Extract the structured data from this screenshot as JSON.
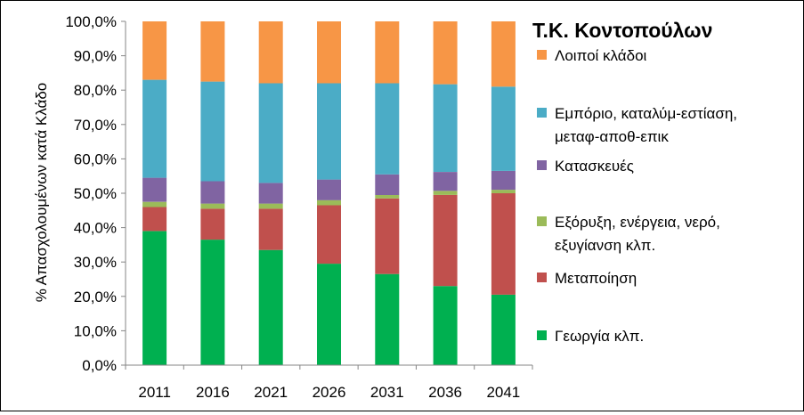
{
  "chart_data": {
    "type": "bar",
    "stacked": true,
    "title": "Τ.Κ. Κοντοπούλων",
    "xlabel": "",
    "ylabel": "% Απασχολουμένων κατά Κλάδο",
    "ylim": [
      0,
      100
    ],
    "ytick_labels": [
      "0,0%",
      "10,0%",
      "20,0%",
      "30,0%",
      "40,0%",
      "50,0%",
      "60,0%",
      "70,0%",
      "80,0%",
      "90,0%",
      "100,0%"
    ],
    "grid": false,
    "legend_position": "right",
    "categories": [
      "2011",
      "2016",
      "2021",
      "2026",
      "2031",
      "2036",
      "2041"
    ],
    "series": [
      {
        "name": "Γεωργία κλπ.",
        "color": "#00B050",
        "values": [
          39.0,
          36.5,
          33.5,
          29.5,
          26.5,
          23.0,
          20.5
        ]
      },
      {
        "name": "Μεταποίηση",
        "color": "#C0504D",
        "values": [
          7.0,
          9.0,
          12.0,
          17.0,
          22.0,
          26.5,
          29.5
        ]
      },
      {
        "name": "Εξόρυξη, ενέργεια, νερό, εξυγίανση κλπ.",
        "color": "#9BBB59",
        "values": [
          1.5,
          1.5,
          1.5,
          1.5,
          1.0,
          1.2,
          1.0
        ]
      },
      {
        "name": "Κατασκευές",
        "color": "#8064A2",
        "values": [
          7.0,
          6.5,
          6.0,
          6.0,
          6.0,
          5.5,
          5.5
        ]
      },
      {
        "name": "Εμπόριο, καταλύμ-εστίαση, μεταφ-αποθ-επικ",
        "color": "#4BACC6",
        "values": [
          28.5,
          29.0,
          29.0,
          28.0,
          26.5,
          25.5,
          24.5
        ]
      },
      {
        "name": "Λοιποί κλάδοι",
        "color": "#F79646",
        "values": [
          17.0,
          17.5,
          18.0,
          18.0,
          18.0,
          18.3,
          19.0
        ]
      }
    ]
  },
  "legend_lines": [
    [
      "Λοιποί κλάδοι"
    ],
    [
      "Εμπόριο, καταλύμ-εστίαση,",
      "μεταφ-αποθ-επικ"
    ],
    [
      "Κατασκευές"
    ],
    [
      "Εξόρυξη, ενέργεια, νερό,",
      "εξυγίανση κλπ."
    ],
    [
      "Μεταποίηση"
    ],
    [
      "Γεωργία κλπ."
    ]
  ],
  "legend_colors": [
    "#F79646",
    "#4BACC6",
    "#8064A2",
    "#9BBB59",
    "#C0504D",
    "#00B050"
  ]
}
